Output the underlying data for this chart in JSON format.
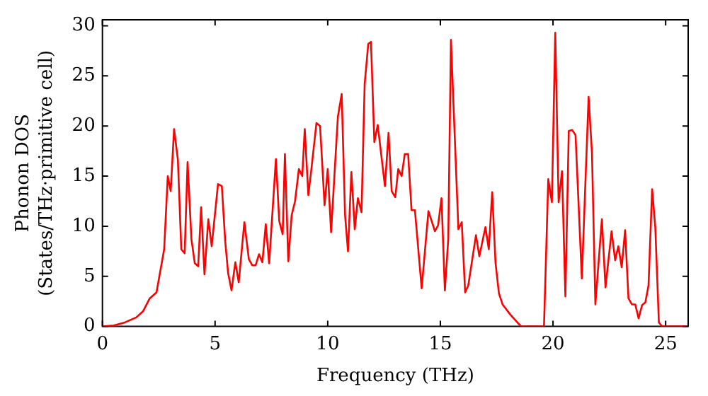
{
  "chart_data": {
    "type": "line",
    "xlabel": "Frequency (THz)",
    "ylabel": "Phonon DOS\n(States/THz·primitive cell)",
    "xlim": [
      0,
      26
    ],
    "ylim": [
      0,
      30.6
    ],
    "xticks": [
      0,
      5,
      10,
      15,
      20,
      25
    ],
    "yticks": [
      0,
      5,
      10,
      15,
      20,
      25,
      30
    ],
    "grid": false,
    "legend": false,
    "marker": "none",
    "line_style": "solid",
    "series": [
      {
        "color": "#ff0000",
        "x": [
          0,
          0.5,
          1.0,
          1.5,
          1.8,
          2.1,
          2.4,
          2.74,
          2.9,
          3.03,
          3.18,
          3.35,
          3.5,
          3.65,
          3.78,
          3.95,
          4.1,
          4.25,
          4.38,
          4.53,
          4.7,
          4.85,
          5.13,
          5.3,
          5.45,
          5.58,
          5.73,
          5.9,
          6.05,
          6.3,
          6.5,
          6.65,
          6.8,
          6.95,
          7.1,
          7.25,
          7.4,
          7.7,
          7.85,
          8.0,
          8.1,
          8.25,
          8.4,
          8.55,
          8.72,
          8.87,
          8.98,
          9.14,
          9.29,
          9.5,
          9.66,
          9.86,
          10.0,
          10.15,
          10.45,
          10.62,
          10.77,
          10.9,
          11.05,
          11.2,
          11.34,
          11.5,
          11.64,
          11.8,
          11.92,
          12.07,
          12.22,
          12.54,
          12.7,
          12.84,
          13.0,
          13.13,
          13.28,
          13.42,
          13.57,
          13.72,
          13.87,
          14.17,
          14.47,
          14.76,
          14.9,
          15.05,
          15.2,
          15.35,
          15.47,
          15.8,
          15.95,
          16.1,
          16.24,
          16.58,
          16.73,
          17.0,
          17.15,
          17.3,
          17.45,
          17.6,
          17.76,
          18.1,
          18.5,
          18.6,
          19.6,
          19.79,
          19.95,
          20.1,
          20.25,
          20.4,
          20.55,
          20.7,
          20.85,
          21.0,
          21.28,
          21.58,
          21.73,
          21.88,
          22.17,
          22.33,
          22.6,
          22.76,
          22.9,
          23.05,
          23.2,
          23.35,
          23.5,
          23.65,
          23.8,
          23.95,
          24.1,
          24.24,
          24.4,
          24.54,
          24.7,
          24.84,
          25.9
        ],
        "values": [
          0,
          0.1,
          0.4,
          0.9,
          1.5,
          2.8,
          3.4,
          7.7,
          15.0,
          13.5,
          19.7,
          16.6,
          7.7,
          7.3,
          16.4,
          8.7,
          6.3,
          6.0,
          11.9,
          5.2,
          10.7,
          8.0,
          14.2,
          14.0,
          8.5,
          5.3,
          3.6,
          6.4,
          4.4,
          10.4,
          6.7,
          6.1,
          6.1,
          7.2,
          6.4,
          10.2,
          6.3,
          16.7,
          10.5,
          9.2,
          17.2,
          6.5,
          11.1,
          12.5,
          15.7,
          15.0,
          19.7,
          13.1,
          16.0,
          20.3,
          20.0,
          12.1,
          15.7,
          9.4,
          20.9,
          23.2,
          11.1,
          7.5,
          15.4,
          9.7,
          12.8,
          11.4,
          24.2,
          28.2,
          28.4,
          18.4,
          20.1,
          14.0,
          19.3,
          13.5,
          12.9,
          15.7,
          15.0,
          17.2,
          17.2,
          11.6,
          11.6,
          3.8,
          11.5,
          9.5,
          10.1,
          12.8,
          3.6,
          8.7,
          28.6,
          9.7,
          10.4,
          3.4,
          4.1,
          9.1,
          7.0,
          9.9,
          7.7,
          13.4,
          6.3,
          3.3,
          2.2,
          1.2,
          0.2,
          0,
          0,
          14.7,
          12.4,
          29.3,
          12.4,
          15.5,
          3.0,
          19.5,
          19.6,
          19.1,
          4.8,
          22.9,
          17.3,
          2.2,
          10.7,
          3.9,
          9.5,
          6.6,
          8.0,
          5.9,
          9.6,
          2.8,
          2.2,
          2.2,
          0.8,
          2.1,
          2.4,
          4.1,
          13.7,
          9.9,
          0.4,
          0,
          0
        ]
      }
    ]
  }
}
